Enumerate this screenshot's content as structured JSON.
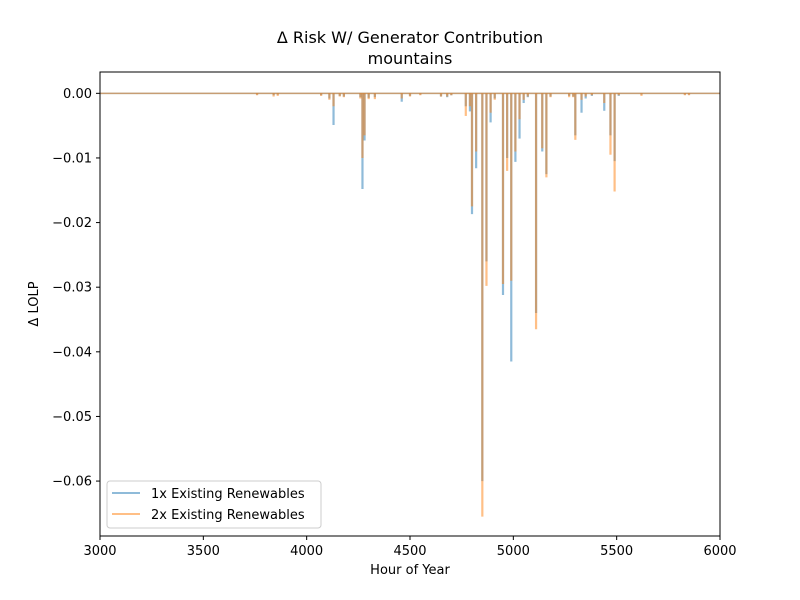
{
  "chart_data": {
    "type": "line",
    "title": "Δ Risk W/ Generator Contribution",
    "subtitle": "mountains",
    "xlabel": "Hour of Year",
    "ylabel": "Δ LOLP",
    "xlim": [
      3000,
      6000
    ],
    "ylim": [
      -0.0685,
      0.0033
    ],
    "xticks": [
      3000,
      3500,
      4000,
      4500,
      5000,
      5500,
      6000
    ],
    "xtick_labels": [
      "3000",
      "3500",
      "4000",
      "4500",
      "5000",
      "5500",
      "6000"
    ],
    "yticks": [
      0.0,
      -0.01,
      -0.02,
      -0.03,
      -0.04,
      -0.05,
      -0.06
    ],
    "ytick_labels": [
      "0.00",
      "−0.01",
      "−0.02",
      "−0.03",
      "−0.04",
      "−0.05",
      "−0.06"
    ],
    "grid": false,
    "legend_position": "lower-left",
    "series": [
      {
        "name": "1x Existing Renewables",
        "color": "#1f77b4",
        "alpha": 0.5,
        "points": [
          [
            3760,
            -0.0002
          ],
          [
            3840,
            -0.0003
          ],
          [
            3860,
            -0.0002
          ],
          [
            4070,
            -0.0003
          ],
          [
            4110,
            -0.0008
          ],
          [
            4130,
            -0.0049
          ],
          [
            4160,
            -0.0004
          ],
          [
            4180,
            -0.0005
          ],
          [
            4260,
            -0.0006
          ],
          [
            4270,
            -0.0148
          ],
          [
            4280,
            -0.0073
          ],
          [
            4300,
            -0.0007
          ],
          [
            4330,
            -0.0006
          ],
          [
            4460,
            -0.0013
          ],
          [
            4500,
            -0.0004
          ],
          [
            4550,
            -0.0002
          ],
          [
            4650,
            -0.0005
          ],
          [
            4680,
            -0.0006
          ],
          [
            4700,
            -0.0003
          ],
          [
            4770,
            -0.002
          ],
          [
            4790,
            -0.0028
          ],
          [
            4800,
            -0.0187
          ],
          [
            4820,
            -0.0116
          ],
          [
            4850,
            -0.06
          ],
          [
            4870,
            -0.026
          ],
          [
            4890,
            -0.0045
          ],
          [
            4910,
            -0.0008
          ],
          [
            4950,
            -0.0312
          ],
          [
            4970,
            -0.01
          ],
          [
            4990,
            -0.0415
          ],
          [
            5010,
            -0.0106
          ],
          [
            5030,
            -0.007
          ],
          [
            5050,
            -0.0015
          ],
          [
            5070,
            -0.0006
          ],
          [
            5110,
            -0.034
          ],
          [
            5140,
            -0.009
          ],
          [
            5160,
            -0.0125
          ],
          [
            5180,
            -0.0005
          ],
          [
            5270,
            -0.0004
          ],
          [
            5290,
            -0.0005
          ],
          [
            5300,
            -0.0065
          ],
          [
            5330,
            -0.003
          ],
          [
            5350,
            -0.0008
          ],
          [
            5380,
            -0.0004
          ],
          [
            5440,
            -0.0027
          ],
          [
            5470,
            -0.0065
          ],
          [
            5490,
            -0.0105
          ],
          [
            5510,
            -0.0004
          ],
          [
            5620,
            -0.0002
          ],
          [
            5830,
            -0.0002
          ],
          [
            5850,
            -0.0002
          ]
        ]
      },
      {
        "name": "2x Existing Renewables",
        "color": "#ff7f0e",
        "alpha": 0.5,
        "points": [
          [
            3760,
            -0.0003
          ],
          [
            3840,
            -0.0005
          ],
          [
            3860,
            -0.0004
          ],
          [
            4070,
            -0.0004
          ],
          [
            4110,
            -0.001
          ],
          [
            4130,
            -0.002
          ],
          [
            4160,
            -0.0005
          ],
          [
            4180,
            -0.0006
          ],
          [
            4260,
            -0.0008
          ],
          [
            4270,
            -0.01
          ],
          [
            4280,
            -0.0065
          ],
          [
            4300,
            -0.0009
          ],
          [
            4330,
            -0.0009
          ],
          [
            4460,
            -0.0008
          ],
          [
            4500,
            -0.0005
          ],
          [
            4550,
            -0.0003
          ],
          [
            4650,
            -0.0005
          ],
          [
            4680,
            -0.0005
          ],
          [
            4700,
            -0.0003
          ],
          [
            4770,
            -0.0035
          ],
          [
            4790,
            -0.002
          ],
          [
            4800,
            -0.0175
          ],
          [
            4820,
            -0.009
          ],
          [
            4850,
            -0.0655
          ],
          [
            4870,
            -0.0298
          ],
          [
            4890,
            -0.003
          ],
          [
            4910,
            -0.001
          ],
          [
            4950,
            -0.0295
          ],
          [
            4970,
            -0.012
          ],
          [
            4990,
            -0.029
          ],
          [
            5010,
            -0.009
          ],
          [
            5030,
            -0.004
          ],
          [
            5050,
            -0.001
          ],
          [
            5070,
            -0.0005
          ],
          [
            5110,
            -0.0365
          ],
          [
            5140,
            -0.0085
          ],
          [
            5160,
            -0.013
          ],
          [
            5180,
            -0.0006
          ],
          [
            5270,
            -0.0006
          ],
          [
            5290,
            -0.0006
          ],
          [
            5300,
            -0.0072
          ],
          [
            5330,
            -0.001
          ],
          [
            5350,
            -0.0005
          ],
          [
            5380,
            -0.0003
          ],
          [
            5440,
            -0.0015
          ],
          [
            5470,
            -0.0095
          ],
          [
            5490,
            -0.0152
          ],
          [
            5510,
            -0.0003
          ],
          [
            5620,
            -0.0004
          ],
          [
            5830,
            -0.0003
          ],
          [
            5850,
            -0.0003
          ]
        ]
      }
    ]
  }
}
